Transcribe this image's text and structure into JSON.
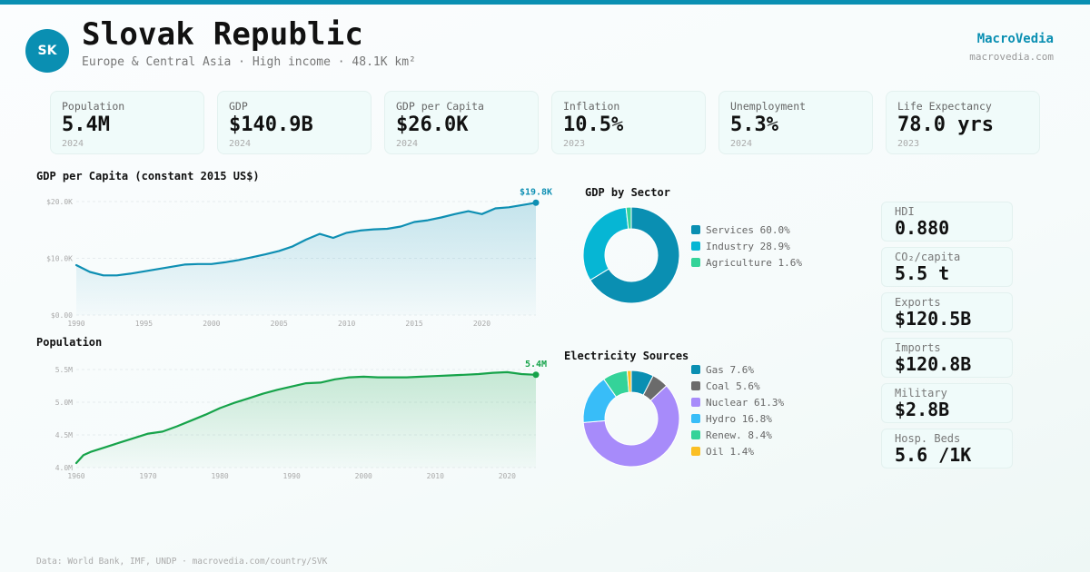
{
  "header": {
    "avatar_text": "SK",
    "title": "Slovak Republic",
    "subtitle": "Europe & Central Asia · High income · 48.1K km²",
    "brand": "MacroVedia",
    "brand_url": "macrovedia.com"
  },
  "colors": {
    "accent": "#0a8fb2",
    "gdp_line": "#0e8fb3",
    "pop_line": "#16a34a"
  },
  "kpis": [
    {
      "label": "Population",
      "value": "5.4M",
      "year": "2024"
    },
    {
      "label": "GDP",
      "value": "$140.9B",
      "year": "2024"
    },
    {
      "label": "GDP per Capita",
      "value": "$26.0K",
      "year": "2024"
    },
    {
      "label": "Inflation",
      "value": "10.5%",
      "year": "2023"
    },
    {
      "label": "Unemployment",
      "value": "5.3%",
      "year": "2024"
    },
    {
      "label": "Life Expectancy",
      "value": "78.0 yrs",
      "year": "2023"
    }
  ],
  "side_stats": [
    {
      "label": "HDI",
      "value": "0.880"
    },
    {
      "label": "CO₂/capita",
      "value": "5.5 t"
    },
    {
      "label": "Exports",
      "value": "$120.5B"
    },
    {
      "label": "Imports",
      "value": "$120.8B"
    },
    {
      "label": "Military",
      "value": "$2.8B"
    },
    {
      "label": "Hosp. Beds",
      "value": "5.6 /1K"
    }
  ],
  "footer": "Data: World Bank, IMF, UNDP · macrovedia.com/country/SVK",
  "chart_data": [
    {
      "type": "area",
      "title": "GDP per Capita (constant 2015 US$)",
      "ylim": [
        0,
        20000
      ],
      "yticks": [
        0,
        10000,
        20000
      ],
      "ytick_labels": [
        "$0.00",
        "$10.0K",
        "$20.0K"
      ],
      "xlim": [
        1990,
        2024
      ],
      "xticks": [
        1990,
        1995,
        2000,
        2005,
        2010,
        2015,
        2020
      ],
      "xtick_labels": [
        "1990",
        "1995",
        "2000",
        "2005",
        "2010",
        "2015",
        "2020"
      ],
      "end_label": "$19.8K",
      "grid": true,
      "x": [
        1990,
        1991,
        1992,
        1993,
        1994,
        1995,
        1996,
        1997,
        1998,
        1999,
        2000,
        2001,
        2002,
        2003,
        2004,
        2005,
        2006,
        2007,
        2008,
        2009,
        2010,
        2011,
        2012,
        2013,
        2014,
        2015,
        2016,
        2017,
        2018,
        2019,
        2020,
        2021,
        2022,
        2023,
        2024
      ],
      "values": [
        8800,
        7600,
        7000,
        7000,
        7300,
        7700,
        8100,
        8500,
        8900,
        9000,
        9000,
        9300,
        9700,
        10200,
        10700,
        11300,
        12100,
        13300,
        14300,
        13600,
        14500,
        14900,
        15100,
        15200,
        15600,
        16400,
        16700,
        17200,
        17800,
        18300,
        17800,
        18800,
        19000,
        19400,
        19800
      ]
    },
    {
      "type": "area",
      "title": "Population",
      "ylim": [
        4000000,
        5500000
      ],
      "yticks": [
        4000000,
        4500000,
        5000000,
        5500000
      ],
      "ytick_labels": [
        "4.0M",
        "4.5M",
        "5.0M",
        "5.5M"
      ],
      "xlim": [
        1960,
        2024
      ],
      "xticks": [
        1960,
        1970,
        1980,
        1990,
        2000,
        2010,
        2020
      ],
      "xtick_labels": [
        "1960",
        "1970",
        "1980",
        "1990",
        "2000",
        "2010",
        "2020"
      ],
      "end_label": "5.4M",
      "grid": true,
      "x": [
        1960,
        1961,
        1962,
        1964,
        1966,
        1968,
        1970,
        1972,
        1974,
        1976,
        1978,
        1980,
        1982,
        1984,
        1986,
        1988,
        1990,
        1992,
        1994,
        1996,
        1998,
        2000,
        2002,
        2004,
        2006,
        2008,
        2010,
        2012,
        2014,
        2016,
        2018,
        2020,
        2022,
        2024
      ],
      "values": [
        4070000,
        4190000,
        4240000,
        4310000,
        4380000,
        4450000,
        4520000,
        4550000,
        4630000,
        4720000,
        4810000,
        4910000,
        4990000,
        5060000,
        5130000,
        5190000,
        5240000,
        5290000,
        5300000,
        5350000,
        5380000,
        5390000,
        5380000,
        5380000,
        5380000,
        5390000,
        5400000,
        5410000,
        5420000,
        5430000,
        5450000,
        5460000,
        5430000,
        5420000
      ]
    },
    {
      "type": "pie",
      "title": "GDP by Sector",
      "categories": [
        "Services",
        "Industry",
        "Agriculture"
      ],
      "values": [
        60.0,
        28.9,
        1.6
      ],
      "labels": [
        "Services 60.0%",
        "Industry 28.9%",
        "Agriculture 1.6%"
      ],
      "colors": [
        "#0a8fb2",
        "#06b6d4",
        "#34d399"
      ]
    },
    {
      "type": "pie",
      "title": "Electricity Sources",
      "categories": [
        "Gas",
        "Coal",
        "Nuclear",
        "Hydro",
        "Renew.",
        "Oil"
      ],
      "values": [
        7.6,
        5.6,
        61.3,
        16.8,
        8.4,
        1.4
      ],
      "labels": [
        "Gas 7.6%",
        "Coal 5.6%",
        "Nuclear 61.3%",
        "Hydro 16.8%",
        "Renew. 8.4%",
        "Oil 1.4%"
      ],
      "colors": [
        "#0a8fb2",
        "#6b6b6b",
        "#a78bfa",
        "#38bdf8",
        "#34d399",
        "#fbbf24"
      ]
    }
  ]
}
